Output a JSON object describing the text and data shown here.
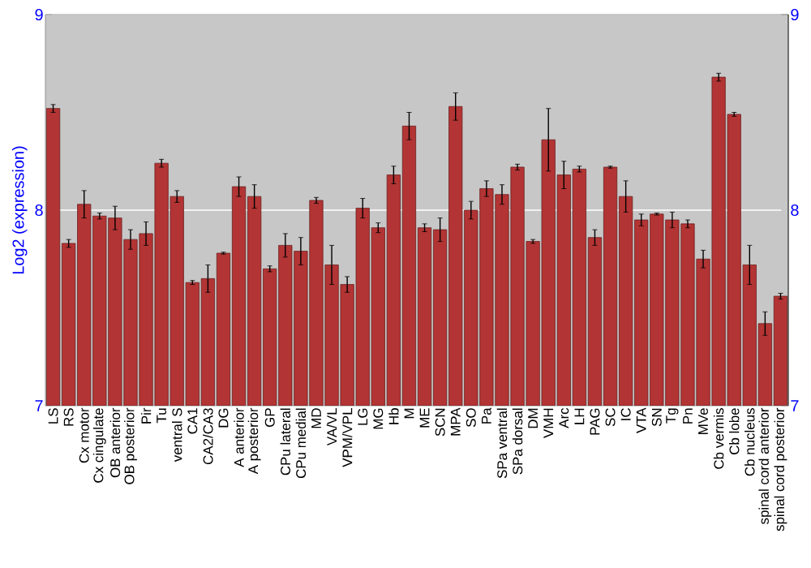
{
  "chart_data": {
    "type": "bar",
    "ylabel": "Log2 (expression)",
    "categories": [
      "LS",
      "RS",
      "Cx motor",
      "Cx cingulate",
      "OB anterior",
      "OB posterior",
      "Pir",
      "Tu",
      "ventral S",
      "CA1",
      "CA2/CA3",
      "DG",
      "A anterior",
      "A posterior",
      "GP",
      "CPu lateral",
      "CPu medial",
      "MD",
      "VA/VL",
      "VPM/VPL",
      "LG",
      "MG",
      "Hb",
      "M",
      "ME",
      "SCN",
      "MPA",
      "SO",
      "Pa",
      "SPa ventral",
      "SPa dorsal",
      "DM",
      "VMH",
      "Arc",
      "LH",
      "PAG",
      "SC",
      "IC",
      "VTA",
      "SN",
      "Tg",
      "Pn",
      "MVe",
      "Cb vermis",
      "Cb lobe",
      "Cb nucleus",
      "spinal cord anterior",
      "spinal cord posterior"
    ],
    "values": [
      8.52,
      7.83,
      8.03,
      7.97,
      7.96,
      7.85,
      7.88,
      8.24,
      8.07,
      7.63,
      7.65,
      7.78,
      8.12,
      8.07,
      7.7,
      7.82,
      7.79,
      8.05,
      7.72,
      7.62,
      8.01,
      7.91,
      8.18,
      8.43,
      7.91,
      7.9,
      8.53,
      8.0,
      8.11,
      8.08,
      8.22,
      7.84,
      8.36,
      8.18,
      8.21,
      7.86,
      8.22,
      8.07,
      7.95,
      7.98,
      7.95,
      7.93,
      7.75,
      8.68,
      8.49,
      7.72,
      7.42,
      7.56
    ],
    "errors": [
      0.02,
      0.02,
      0.07,
      0.015,
      0.06,
      0.05,
      0.06,
      0.02,
      0.03,
      0.01,
      0.07,
      0.005,
      0.05,
      0.06,
      0.015,
      0.06,
      0.07,
      0.015,
      0.1,
      0.04,
      0.05,
      0.025,
      0.045,
      0.07,
      0.02,
      0.06,
      0.07,
      0.045,
      0.04,
      0.05,
      0.015,
      0.01,
      0.16,
      0.07,
      0.015,
      0.04,
      0.005,
      0.08,
      0.03,
      0.005,
      0.04,
      0.02,
      0.045,
      0.02,
      0.01,
      0.1,
      0.06,
      0.015
    ],
    "color": "#b33434",
    "ylim": [
      7,
      9
    ],
    "yticks": [
      7,
      8,
      9
    ],
    "y2lim": [
      7,
      9
    ],
    "y2ticks": [
      7,
      8,
      9
    ],
    "grid": "y"
  }
}
